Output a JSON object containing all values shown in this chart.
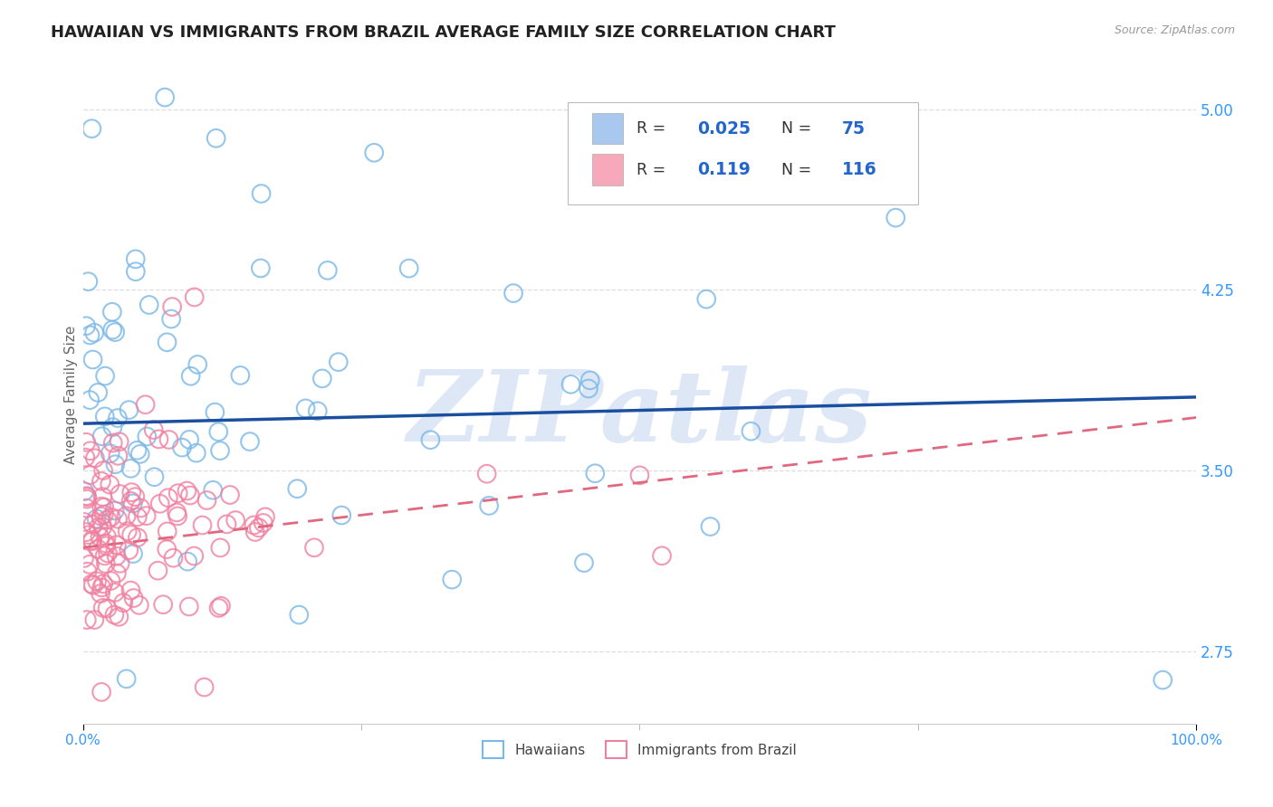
{
  "title": "HAWAIIAN VS IMMIGRANTS FROM BRAZIL AVERAGE FAMILY SIZE CORRELATION CHART",
  "source_text": "Source: ZipAtlas.com",
  "ylabel": "Average Family Size",
  "xlim": [
    0.0,
    1.0
  ],
  "ylim": [
    2.45,
    5.18
  ],
  "yticks": [
    2.75,
    3.5,
    4.25,
    5.0
  ],
  "xtick_labels": [
    "0.0%",
    "100.0%"
  ],
  "hawaiians_color": "#7ab8e8",
  "brazil_color": "#f080a0",
  "hawaiians_line_color": "#1a4fa0",
  "brazil_line_color": "#e06880",
  "watermark": "ZIPatlas",
  "watermark_color": "#c8d8f0",
  "background_color": "#ffffff",
  "grid_color": "#dddddd",
  "title_fontsize": 13,
  "axis_label_fontsize": 11,
  "tick_fontsize": 11,
  "hawaii_line_x0": 0.0,
  "hawaii_line_y0": 3.695,
  "hawaii_line_x1": 1.0,
  "hawaii_line_y1": 3.805,
  "brazil_line_x0": 0.0,
  "brazil_line_y0": 3.18,
  "brazil_line_x1": 1.0,
  "brazil_line_y1": 3.72,
  "hawaii_seed": 42,
  "brazil_seed": 77
}
